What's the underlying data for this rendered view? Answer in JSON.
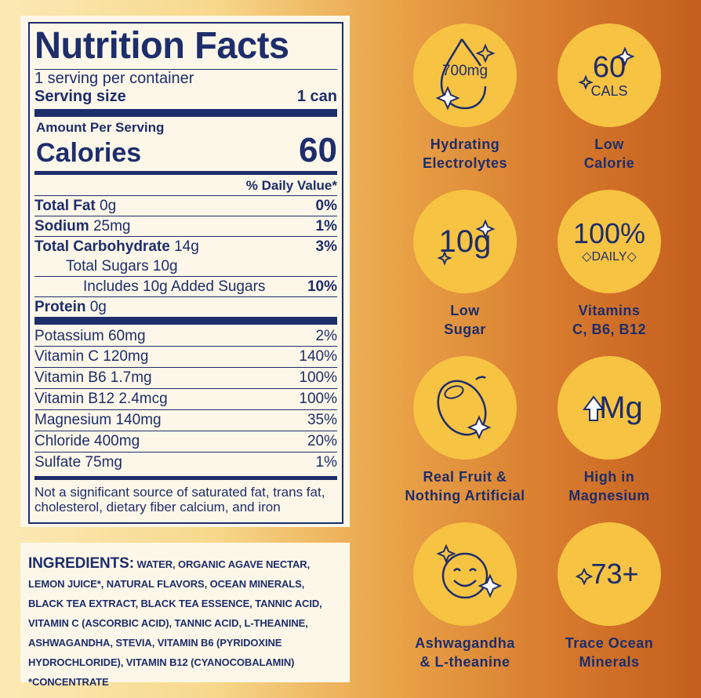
{
  "nutrition": {
    "title": "Nutrition Facts",
    "servings": "1 serving per container",
    "serving_size_label": "Serving size",
    "serving_size_value": "1 can",
    "amount_per_serving": "Amount Per Serving",
    "calories_label": "Calories",
    "calories_value": "60",
    "dv_header": "% Daily Value*",
    "rows": [
      {
        "name": "Total Fat",
        "amount": "0g",
        "dv": "0%"
      },
      {
        "name": "Sodium",
        "amount": "25mg",
        "dv": "1%"
      },
      {
        "name": "Total Carbohydrate",
        "amount": "14g",
        "dv": "3%"
      },
      {
        "name": "Total Sugars 10g",
        "amount": "",
        "dv": ""
      },
      {
        "name": "Includes 10g Added Sugars",
        "amount": "",
        "dv": "10%"
      },
      {
        "name": "Protein",
        "amount": "0g",
        "dv": ""
      }
    ],
    "micros": [
      {
        "name": "Potassium 60mg",
        "dv": "2%"
      },
      {
        "name": "Vitamin C 120mg",
        "dv": "140%"
      },
      {
        "name": "Vitamin B6 1.7mg",
        "dv": "100%"
      },
      {
        "name": "Vitamin B12 2.4mcg",
        "dv": "100%"
      },
      {
        "name": "Magnesium 140mg",
        "dv": "35%"
      },
      {
        "name": "Chloride 400mg",
        "dv": "20%"
      },
      {
        "name": "Sulfate 75mg",
        "dv": "1%"
      }
    ],
    "footnote": "Not a significant source of saturated fat, trans fat, cholesterol, dietary fiber calcium, and iron"
  },
  "ingredients": {
    "heading": "INGREDIENTS:",
    "text": "WATER, ORGANIC AGAVE NECTAR, LEMON JUICE*, NATURAL FLAVORS, OCEAN MINERALS, BLACK TEA EXTRACT, BLACK TEA ESSENCE, TANNIC ACID, VITAMIN C (ASCORBIC ACID), TANNIC ACID, L-THEANINE, ASHWAGANDHA, STEVIA, VITAMIN B6 (PYRIDOXINE HYDROCHLORIDE), VITAMIN B12 (CYANOCOBALAMIN) *CONCENTRATE"
  },
  "badges": [
    {
      "icon": "water-drop-icon",
      "text": "700mg",
      "label1": "Hydrating",
      "label2": "Electrolytes"
    },
    {
      "icon": "calories-icon",
      "text": "60",
      "sub": "CALS",
      "label1": "Low",
      "label2": "Calorie"
    },
    {
      "icon": "sugar-icon",
      "text": "10g",
      "label1": "Low",
      "label2": "Sugar"
    },
    {
      "icon": "vitamins-icon",
      "text": "100%",
      "sub": "DAILY",
      "label1": "Vitamins",
      "label2": "C, B6, B12"
    },
    {
      "icon": "lemon-icon",
      "label1": "Real Fruit &",
      "label2": "Nothing Artificial"
    },
    {
      "icon": "magnesium-icon",
      "text": "Mg",
      "label1": "High in",
      "label2": "Magnesium"
    },
    {
      "icon": "smiley-icon",
      "label1": "Ashwagandha",
      "label2": "& L-theanine"
    },
    {
      "icon": "minerals-icon",
      "text": "73+",
      "label1": "Trace Ocean",
      "label2": "Minerals"
    }
  ],
  "colors": {
    "navy": "#1e2d6b",
    "badge": "#f6c343",
    "panel": "#fcf7e8"
  }
}
